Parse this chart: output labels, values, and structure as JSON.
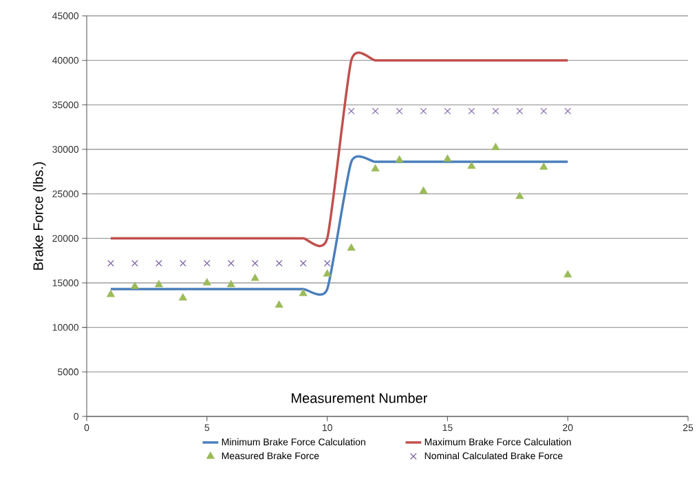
{
  "chart_data": {
    "type": "line",
    "xlabel": "Measurement Number",
    "ylabel": "Brake Force (lbs.)",
    "x": [
      1,
      2,
      3,
      4,
      5,
      6,
      7,
      8,
      9,
      10,
      11,
      12,
      13,
      14,
      15,
      16,
      17,
      18,
      19,
      20
    ],
    "series": [
      {
        "name": "Minimum Brake Force Calculation",
        "color": "#4a7ebb",
        "marker": "none",
        "values": [
          14300,
          14300,
          14300,
          14300,
          14300,
          14300,
          14300,
          14300,
          14300,
          14300,
          28600,
          28600,
          28600,
          28600,
          28600,
          28600,
          28600,
          28600,
          28600,
          28600
        ]
      },
      {
        "name": "Maximum Brake Force Calculation",
        "color": "#c0504d",
        "marker": "none",
        "values": [
          20000,
          20000,
          20000,
          20000,
          20000,
          20000,
          20000,
          20000,
          20000,
          20000,
          40000,
          40000,
          40000,
          40000,
          40000,
          40000,
          40000,
          40000,
          40000,
          40000
        ]
      },
      {
        "name": "Measured Brake Force",
        "type": "scatter",
        "color": "#9bbb59",
        "marker": "triangle",
        "values": [
          13700,
          14600,
          14800,
          13300,
          15000,
          14800,
          15500,
          12500,
          13800,
          16000,
          18900,
          27800,
          28800,
          25300,
          28900,
          28100,
          30200,
          24700,
          28000,
          15900
        ]
      },
      {
        "name": "Nominal Calculated Brake Force",
        "type": "scatter",
        "color": "#8064a2",
        "marker": "cross",
        "values": [
          17200,
          17200,
          17200,
          17200,
          17200,
          17200,
          17200,
          17200,
          17200,
          17200,
          34300,
          34300,
          34300,
          34300,
          34300,
          34300,
          34300,
          34300,
          34300,
          34300
        ]
      }
    ],
    "xlim": [
      0,
      25
    ],
    "xticks": [
      0,
      5,
      10,
      15,
      20,
      25
    ],
    "ylim": [
      0,
      45000
    ],
    "yticks": [
      0,
      5000,
      10000,
      15000,
      20000,
      25000,
      30000,
      35000,
      40000,
      45000
    ],
    "grid": "y",
    "legend": "bottom"
  }
}
